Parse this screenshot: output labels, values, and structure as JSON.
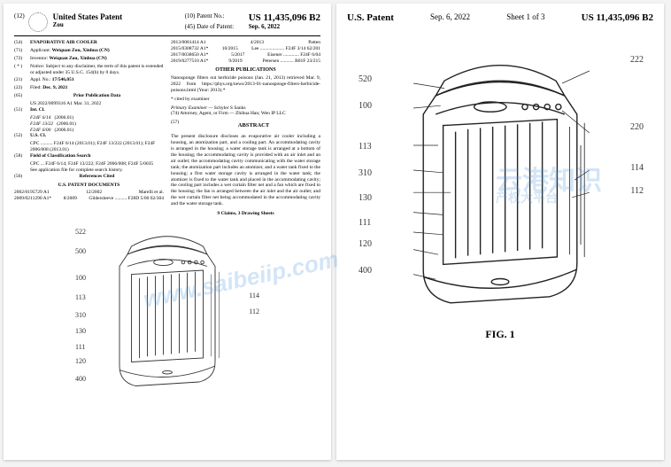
{
  "left": {
    "header": {
      "country": "United States Patent",
      "inventor_line": "Zou",
      "patno_label": "(10) Patent No.:",
      "patno": "US 11,435,096 B2",
      "date_label": "(45) Date of Patent:",
      "date": "Sep. 6, 2022",
      "code12": "(12)"
    },
    "title_code": "(54)",
    "title": "EVAPORATIVE AIR COOLER",
    "applicant_code": "(71)",
    "applicant_lab": "Applicant:",
    "applicant": "Weiquan Zou, Xinhua (CN)",
    "inventor_code": "(72)",
    "inventor_lab": "Inventor:",
    "inventor": "Weiquan Zou, Xinhua (CN)",
    "notice_code": "( * )",
    "notice_lab": "Notice:",
    "notice": "Subject to any disclaimer, the term of this patent is extended or adjusted under 35 U.S.C. 154(b) by 0 days.",
    "appl_code": "(21)",
    "appl_lab": "Appl. No.:",
    "appl": "17/546,051",
    "filed_code": "(22)",
    "filed_lab": "Filed:",
    "filed": "Dec. 9, 2021",
    "prior_code": "(65)",
    "prior_head": "Prior Publication Data",
    "prior_line": "US 2022/0099316 A1    Mar. 31, 2022",
    "intcl_code": "(51)",
    "intcl_lab": "Int. Cl.",
    "intcl": [
      {
        "cls": "F24F 6/14",
        "yr": "(2006.01)"
      },
      {
        "cls": "F24F 13/22",
        "yr": "(2006.01)"
      },
      {
        "cls": "F24F 6/00",
        "yr": "(2006.01)"
      }
    ],
    "uscl_code": "(52)",
    "uscl_lab": "U.S. Cl.",
    "uscl": "CPC .......... F24F 6/14 (2013.01); F24F 13/222 (2013.01); F24F 2006/008 (2013.01)",
    "fcs_code": "(58)",
    "fcs_lab": "Field of Classification Search",
    "fcs": "CPC ... F24F 6/14; F24F 13/222; F24F 2006/008; F24F 5/0035",
    "fcs2": "See application file for complete search history.",
    "ref_code": "(56)",
    "ref_head": "References Cited",
    "ref_sub": "U.S. PATENT DOCUMENTS",
    "refs_us": [
      {
        "n": "2002/0195729 A1",
        "d": "12/2002",
        "a": "Marelli et al."
      },
      {
        "n": "2009/0211290 A1*",
        "d": "8/2009",
        "a": "Gildersleeve .......... F28D 5/00  62/304"
      }
    ],
    "refs_us2": [
      {
        "n": "2013/0081414 A1",
        "d": "4/2013",
        "a": "Patten"
      },
      {
        "n": "2015/0308732 A1*",
        "d": "10/2015",
        "a": "Lee .................... F24F 3/14  62/201"
      },
      {
        "n": "2017/0038650 A1*",
        "d": "5/2017",
        "a": "Eisener ............. F24F 6/04"
      },
      {
        "n": "2019/0277510 A1*",
        "d": "9/2019",
        "a": "Petersen ........... B01F 23/215"
      }
    ],
    "otherpub_head": "OTHER PUBLICATIONS",
    "otherpub": "Nanosponge filters out herbicide poisons (Jan. 21, 2013) retrieved Mar. 9, 2022 from https://phys.org/news/2013-01-nanosponge-filters-herbicide-poisons.html (Year: 2013).*",
    "cited": "* cited by examiner",
    "examiner_lab": "Primary Examiner —",
    "examiner": "Schyler S Sanks",
    "attorney_lab": "(74) Attorney, Agent, or Firm —",
    "attorney": "Zhihua Han; Wen IP LLC",
    "abs_code": "(57)",
    "abs_head": "ABSTRACT",
    "abstract": "The present disclosure discloses an evaporative air cooler including a housing, an atomization part, and a cooling part. An accommodating cavity is arranged in the housing; a water storage tank is arranged at a bottom of the housing; the accommodating cavity is provided with an air inlet and an air outlet; the accommodating cavity communicating with the water storage tank; the atomization part includes an atomizer, and a water tank fixed to the housing; a first water storage cavity is arranged in the water tank; the atomizer is fixed to the water tank and placed in the accommodating cavity; the cooling part includes a wet curtain filter net and a fan which are fixed to the housing; the fan is arranged between the air inlet and the air outlet; and the wet curtain filter net being accommodated in the accommodating cavity and the water storage tank.",
    "claims": "9 Claims, 3 Drawing Sheets"
  },
  "right": {
    "h1": "U.S. Patent",
    "h2": "Sep. 6, 2022",
    "h3": "Sheet 1 of 3",
    "h4": "US 11,435,096 B2",
    "figlabel": "FIG. 1"
  },
  "leads": {
    "l522": "522",
    "l500": "500",
    "l100": "100",
    "l113": "113",
    "l310": "310",
    "l130": "130",
    "l111": "111",
    "l120": "120",
    "l400": "400",
    "r222": "222",
    "r520": "520",
    "r220": "220",
    "r114": "114",
    "r112": "112"
  },
  "watermarks": {
    "wm1": "www.saibeiip.com",
    "wm2a": "云港知识",
    "wm2b": "产权大平台"
  }
}
